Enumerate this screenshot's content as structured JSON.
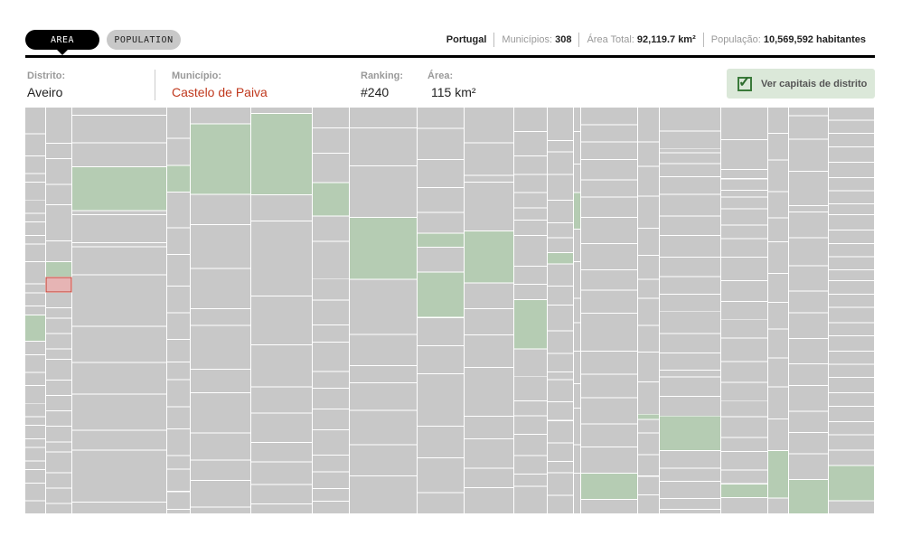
{
  "tabs": {
    "area": "AREA",
    "population": "POPULATION"
  },
  "summary": {
    "country": "Portugal",
    "municipios_label": "Municípios:",
    "municipios_value": "308",
    "area_label": "Área Total:",
    "area_value": "92,119.7 km²",
    "population_label": "População:",
    "population_value": "10,569,592 habitantes"
  },
  "info": {
    "distrito_label": "Distrito:",
    "distrito_value": "Aveiro",
    "municipio_label": "Município:",
    "municipio_value": "Castelo de Paiva",
    "ranking_label": "Ranking:",
    "ranking_value": "#240",
    "area_label": "Área:",
    "area_value": "115 km²"
  },
  "capitais_label": "Ver capitais de distrito",
  "colors": {
    "cell": "#c8c8c8",
    "capital": "#b5ccb3",
    "highlight": "#e6b4b4",
    "highlight_border": "#c0392b"
  },
  "chart_data": {
    "type": "treemap",
    "metric": "area",
    "unit": "km²",
    "total": 92119.7,
    "selected": {
      "distrito": "Aveiro",
      "municipio": "Castelo de Paiva",
      "ranking": 240,
      "area": 115
    },
    "columns": [
      {
        "w": 23,
        "cells": [
          {
            "h": 6
          },
          {
            "h": 5
          },
          {
            "h": 4
          },
          {
            "h": 2
          },
          {
            "h": 4
          },
          {
            "h": 3
          },
          {
            "h": 2
          },
          {
            "h": 3
          },
          {
            "h": 2
          },
          {
            "h": 4
          },
          {
            "h": 5
          },
          {
            "h": 2
          },
          {
            "h": 3
          },
          {
            "h": 2
          },
          {
            "h": 6,
            "cap": 1
          },
          {
            "h": 3
          },
          {
            "h": 4
          },
          {
            "h": 3
          },
          {
            "h": 4
          },
          {
            "h": 3
          },
          {
            "h": 2
          },
          {
            "h": 3
          },
          {
            "h": 2
          },
          {
            "h": 3
          },
          {
            "h": 2
          },
          {
            "h": 3
          },
          {
            "h": 4
          },
          {
            "h": 3
          }
        ]
      },
      {
        "w": 29,
        "cells": [
          {
            "h": 7
          },
          {
            "h": 3
          },
          {
            "h": 5
          },
          {
            "h": 4
          },
          {
            "h": 7
          },
          {
            "h": 4
          },
          {
            "h": 3,
            "cap": 1
          },
          {
            "h": 3,
            "sel": 1
          },
          {
            "h": 3
          },
          {
            "h": 2
          },
          {
            "h": 3
          },
          {
            "h": 3
          },
          {
            "h": 2
          },
          {
            "h": 4
          },
          {
            "h": 3
          },
          {
            "h": 3
          },
          {
            "h": 3
          },
          {
            "h": 3
          },
          {
            "h": 2
          },
          {
            "h": 4
          },
          {
            "h": 3
          },
          {
            "h": 3
          },
          {
            "h": 2
          }
        ]
      },
      {
        "w": 105,
        "cells": [
          {
            "h": 2
          },
          {
            "h": 7
          },
          {
            "h": 6
          },
          {
            "h": 11,
            "cap": 1
          },
          {
            "h": 1
          },
          {
            "h": 7
          },
          {
            "h": 1
          },
          {
            "h": 7
          },
          {
            "h": 13
          },
          {
            "h": 9
          },
          {
            "h": 8
          },
          {
            "h": 9
          },
          {
            "h": 5
          },
          {
            "h": 13
          },
          {
            "h": 3
          }
        ]
      },
      {
        "w": 26,
        "cells": [
          {
            "h": 7
          },
          {
            "h": 6
          },
          {
            "h": 6,
            "cap": 1
          },
          {
            "h": 8
          },
          {
            "h": 6
          },
          {
            "h": 7
          },
          {
            "h": 6
          },
          {
            "h": 6
          },
          {
            "h": 5
          },
          {
            "h": 4
          },
          {
            "h": 6
          },
          {
            "h": 5
          },
          {
            "h": 6
          },
          {
            "h": 3
          },
          {
            "h": 5
          },
          {
            "h": 4
          },
          {
            "h": 1
          }
        ]
      },
      {
        "w": 67,
        "cells": [
          {
            "h": 5
          },
          {
            "h": 21,
            "cap": 1
          },
          {
            "h": 9
          },
          {
            "h": 13
          },
          {
            "h": 12
          },
          {
            "h": 5
          },
          {
            "h": 13
          },
          {
            "h": 7
          },
          {
            "h": 12
          },
          {
            "h": 8
          },
          {
            "h": 6
          },
          {
            "h": 8
          },
          {
            "h": 2
          }
        ]
      },
      {
        "w": 68,
        "cells": [
          {
            "h": 2
          },
          {
            "h": 25,
            "cap": 1
          },
          {
            "h": 8
          },
          {
            "h": 23
          },
          {
            "h": 15
          },
          {
            "h": 13
          },
          {
            "h": 8
          },
          {
            "h": 9
          },
          {
            "h": 6
          },
          {
            "h": 7
          },
          {
            "h": 6
          },
          {
            "h": 3
          }
        ]
      },
      {
        "w": 41,
        "cells": [
          {
            "h": 5
          },
          {
            "h": 6
          },
          {
            "h": 7
          },
          {
            "h": 8,
            "cap": 1
          },
          {
            "h": 6
          },
          {
            "h": 9
          },
          {
            "h": 5
          },
          {
            "h": 6
          },
          {
            "h": 4
          },
          {
            "h": 7
          },
          {
            "h": 4
          },
          {
            "h": 5
          },
          {
            "h": 5
          },
          {
            "h": 6
          },
          {
            "h": 4
          },
          {
            "h": 4
          },
          {
            "h": 3
          },
          {
            "h": 3
          }
        ]
      },
      {
        "w": 75,
        "cells": [
          {
            "h": 6
          },
          {
            "h": 11
          },
          {
            "h": 15
          },
          {
            "h": 18,
            "cap": 1
          },
          {
            "h": 16
          },
          {
            "h": 9
          },
          {
            "h": 5
          },
          {
            "h": 8
          },
          {
            "h": 10
          },
          {
            "h": 9
          },
          {
            "h": 11
          }
        ]
      },
      {
        "w": 52,
        "cells": [
          {
            "h": 6
          },
          {
            "h": 9
          },
          {
            "h": 8
          },
          {
            "h": 7
          },
          {
            "h": 6
          },
          {
            "h": 4,
            "cap": 1
          },
          {
            "h": 7
          },
          {
            "h": 13,
            "cap": 1
          },
          {
            "h": 8
          },
          {
            "h": 8
          },
          {
            "h": 15
          },
          {
            "h": 9
          },
          {
            "h": 10
          },
          {
            "h": 6
          }
        ]
      },
      {
        "w": 55,
        "cells": [
          {
            "h": 11
          },
          {
            "h": 10
          },
          {
            "h": 2
          },
          {
            "h": 15
          },
          {
            "h": 16,
            "cap": 1
          },
          {
            "h": 8
          },
          {
            "h": 8
          },
          {
            "h": 10
          },
          {
            "h": 15
          },
          {
            "h": 7
          },
          {
            "h": 9
          },
          {
            "h": 6
          },
          {
            "h": 8
          }
        ]
      },
      {
        "w": 37,
        "cells": [
          {
            "h": 8
          },
          {
            "h": 8
          },
          {
            "h": 6
          },
          {
            "h": 6
          },
          {
            "h": 5
          },
          {
            "h": 4
          },
          {
            "h": 5
          },
          {
            "h": 10
          },
          {
            "h": 6
          },
          {
            "h": 5
          },
          {
            "h": 16,
            "cap": 1
          },
          {
            "h": 9
          },
          {
            "h": 8
          },
          {
            "h": 5
          },
          {
            "h": 6
          },
          {
            "h": 7
          },
          {
            "h": 6
          },
          {
            "h": 4
          },
          {
            "h": 9
          }
        ]
      },
      {
        "w": 29,
        "cells": [
          {
            "h": 9
          },
          {
            "h": 3
          },
          {
            "h": 6
          },
          {
            "h": 7
          },
          {
            "h": 6
          },
          {
            "h": 4
          },
          {
            "h": 4
          },
          {
            "h": 3,
            "cap": 1
          },
          {
            "h": 6
          },
          {
            "h": 5
          },
          {
            "h": 7
          },
          {
            "h": 6
          },
          {
            "h": 5
          },
          {
            "h": 2
          },
          {
            "h": 6
          },
          {
            "h": 5
          },
          {
            "h": 6
          },
          {
            "h": 5
          },
          {
            "h": 3
          },
          {
            "h": 6
          },
          {
            "h": 5
          }
        ]
      },
      {
        "w": 8,
        "cells": [
          {
            "h": 6
          },
          {
            "h": 8
          },
          {
            "h": 7
          },
          {
            "h": 9,
            "cap": 1
          },
          {
            "h": 8
          },
          {
            "h": 9
          },
          {
            "h": 6
          },
          {
            "h": 7
          },
          {
            "h": 8
          },
          {
            "h": 6
          },
          {
            "h": 9
          },
          {
            "h": 7
          },
          {
            "h": 10
          }
        ]
      },
      {
        "w": 63,
        "cells": [
          {
            "h": 6
          },
          {
            "h": 6
          },
          {
            "h": 6
          },
          {
            "h": 7
          },
          {
            "h": 6
          },
          {
            "h": 7
          },
          {
            "h": 9
          },
          {
            "h": 9
          },
          {
            "h": 7
          },
          {
            "h": 8
          },
          {
            "h": 13
          },
          {
            "h": 8
          },
          {
            "h": 8
          },
          {
            "h": 9
          },
          {
            "h": 8
          },
          {
            "h": 9
          },
          {
            "h": 9,
            "cap": 1
          },
          {
            "h": 5
          }
        ]
      },
      {
        "w": 24,
        "cells": [
          {
            "h": 13
          },
          {
            "h": 9
          },
          {
            "h": 11
          },
          {
            "h": 12
          },
          {
            "h": 10
          },
          {
            "h": 9
          },
          {
            "h": 7
          },
          {
            "h": 10
          },
          {
            "h": 10
          },
          {
            "h": 11
          },
          {
            "h": 12
          },
          {
            "h": 2,
            "cap": 1
          },
          {
            "h": 5
          },
          {
            "h": 8
          },
          {
            "h": 8
          },
          {
            "h": 7
          },
          {
            "h": 7
          }
        ]
      },
      {
        "w": 68,
        "cells": [
          {
            "h": 11
          },
          {
            "h": 8
          },
          {
            "h": 2
          },
          {
            "h": 5
          },
          {
            "h": 6
          },
          {
            "h": 8
          },
          {
            "h": 10
          },
          {
            "h": 9
          },
          {
            "h": 10
          },
          {
            "h": 9
          },
          {
            "h": 8
          },
          {
            "h": 8
          },
          {
            "h": 10
          },
          {
            "h": 9
          },
          {
            "h": 8
          },
          {
            "h": 3
          },
          {
            "h": 9
          },
          {
            "h": 9
          },
          {
            "h": 16,
            "cap": 1
          },
          {
            "h": 8
          },
          {
            "h": 6
          },
          {
            "h": 8
          },
          {
            "h": 5
          },
          {
            "h": 2
          }
        ]
      },
      {
        "w": 52,
        "cells": [
          {
            "h": 14
          },
          {
            "h": 13
          },
          {
            "h": 4
          },
          {
            "h": 5
          },
          {
            "h": 3
          },
          {
            "h": 5
          },
          {
            "h": 7
          },
          {
            "h": 6
          },
          {
            "h": 8
          },
          {
            "h": 10
          },
          {
            "h": 9
          },
          {
            "h": 8
          },
          {
            "h": 8
          },
          {
            "h": 10
          },
          {
            "h": 9
          },
          {
            "h": 8
          },
          {
            "h": 7
          },
          {
            "h": 9
          },
          {
            "h": 6
          },
          {
            "h": 8
          },
          {
            "h": 6
          },
          {
            "h": 6,
            "cap": 1
          },
          {
            "h": 7
          }
        ]
      },
      {
        "w": 23,
        "cells": [
          {
            "h": 10
          },
          {
            "h": 10
          },
          {
            "h": 12
          },
          {
            "h": 10
          },
          {
            "h": 9
          },
          {
            "h": 12
          },
          {
            "h": 11
          },
          {
            "h": 10
          },
          {
            "h": 11
          },
          {
            "h": 11
          },
          {
            "h": 12
          },
          {
            "h": 12
          },
          {
            "h": 18,
            "cap": 1
          },
          {
            "h": 6
          }
        ]
      },
      {
        "w": 44,
        "cells": [
          {
            "h": 4
          },
          {
            "h": 11
          },
          {
            "h": 15
          },
          {
            "h": 16
          },
          {
            "h": 3
          },
          {
            "h": 12
          },
          {
            "h": 13
          },
          {
            "h": 12
          },
          {
            "h": 10
          },
          {
            "h": 12
          },
          {
            "h": 12
          },
          {
            "h": 10
          },
          {
            "h": 12
          },
          {
            "h": 10
          },
          {
            "h": 10
          },
          {
            "h": 12
          },
          {
            "h": 16,
            "cap": 1
          }
        ]
      },
      {
        "w": 51,
        "cells": [
          {
            "h": 6
          },
          {
            "h": 6
          },
          {
            "h": 6
          },
          {
            "h": 7
          },
          {
            "h": 7
          },
          {
            "h": 6
          },
          {
            "h": 6
          },
          {
            "h": 5
          },
          {
            "h": 7
          },
          {
            "h": 6
          },
          {
            "h": 6
          },
          {
            "h": 6
          },
          {
            "h": 5
          },
          {
            "h": 6
          },
          {
            "h": 6
          },
          {
            "h": 7
          },
          {
            "h": 6
          },
          {
            "h": 7
          },
          {
            "h": 6
          },
          {
            "h": 6
          },
          {
            "h": 7
          },
          {
            "h": 6
          },
          {
            "h": 7
          },
          {
            "h": 6
          },
          {
            "h": 7
          },
          {
            "h": 7
          },
          {
            "h": 16,
            "cap": 1
          },
          {
            "h": 6
          }
        ]
      }
    ]
  }
}
